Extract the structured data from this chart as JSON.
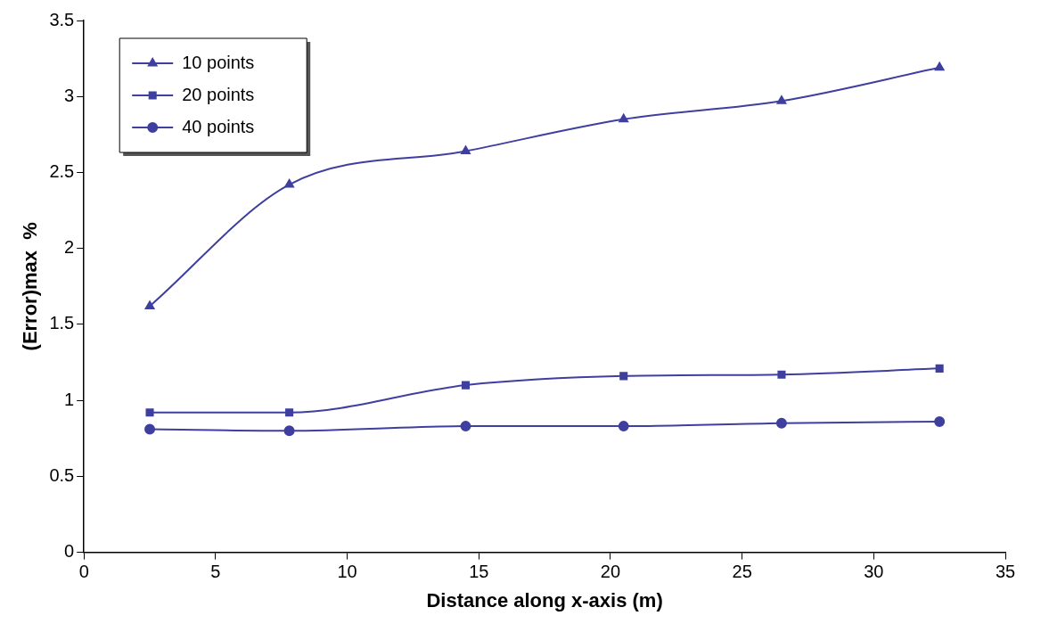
{
  "chart_data": {
    "type": "line",
    "xlabel": "Distance along x-axis (m)",
    "ylabel": "(Error)max  %",
    "x": [
      2.5,
      7.8,
      14.5,
      20.5,
      26.5,
      32.5
    ],
    "series": [
      {
        "name": "10 points",
        "color": "#3f3f9f",
        "marker": "triangle",
        "values": [
          1.62,
          2.42,
          2.64,
          2.85,
          2.97,
          3.19
        ]
      },
      {
        "name": "20 points",
        "color": "#3f3f9f",
        "marker": "square",
        "values": [
          0.92,
          0.92,
          1.1,
          1.16,
          1.17,
          1.21
        ]
      },
      {
        "name": "40 points",
        "color": "#3f3f9f",
        "marker": "circle",
        "values": [
          0.81,
          0.8,
          0.83,
          0.83,
          0.85,
          0.86
        ]
      }
    ],
    "xlim": [
      0,
      35
    ],
    "xticks": [
      0,
      5,
      10,
      15,
      20,
      25,
      30,
      35
    ],
    "ylim": [
      0,
      3.5
    ],
    "yticks": [
      0,
      0.5,
      1,
      1.5,
      2,
      2.5,
      3,
      3.5
    ],
    "grid": false,
    "legend": "top left",
    "line_style": "solid"
  }
}
